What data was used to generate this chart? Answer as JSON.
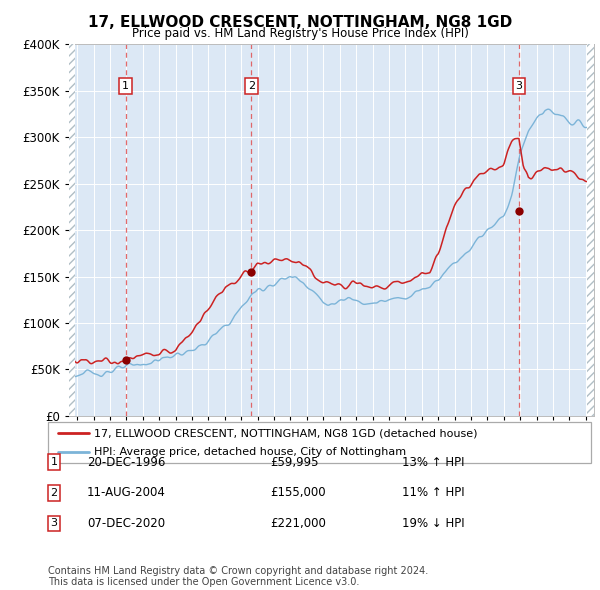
{
  "title": "17, ELLWOOD CRESCENT, NOTTINGHAM, NG8 1GD",
  "subtitle": "Price paid vs. HM Land Registry's House Price Index (HPI)",
  "sale_info": [
    {
      "label": "1",
      "date": "20-DEC-1996",
      "price": "£59,995",
      "hpi": "13% ↑ HPI"
    },
    {
      "label": "2",
      "date": "11-AUG-2004",
      "price": "£155,000",
      "hpi": "11% ↑ HPI"
    },
    {
      "label": "3",
      "date": "07-DEC-2020",
      "price": "£221,000",
      "hpi": "19% ↓ HPI"
    }
  ],
  "legend_line1": "17, ELLWOOD CRESCENT, NOTTINGHAM, NG8 1GD (detached house)",
  "legend_line2": "HPI: Average price, detached house, City of Nottingham",
  "footer1": "Contains HM Land Registry data © Crown copyright and database right 2024.",
  "footer2": "This data is licensed under the Open Government Licence v3.0.",
  "hpi_color": "#7cb4d8",
  "price_color": "#cc2222",
  "sale_marker_color": "#8b0000",
  "vline_color": "#e05050",
  "plot_bg": "#dce8f5",
  "ylim": [
    0,
    400000
  ],
  "yticks": [
    0,
    50000,
    100000,
    150000,
    200000,
    250000,
    300000,
    350000,
    400000
  ],
  "sale_year_vals": [
    1996.96,
    2004.61,
    2020.92
  ],
  "sale_prices": [
    59995,
    155000,
    221000
  ],
  "hpi_anchors_x": [
    1993.5,
    1994.0,
    1994.5,
    1995.5,
    1996.5,
    1997.5,
    1998.5,
    1999.5,
    2000.5,
    2001.5,
    2002.5,
    2003.5,
    2004.5,
    2005.0,
    2006.0,
    2007.0,
    2007.5,
    2008.0,
    2008.5,
    2009.0,
    2009.5,
    2010.0,
    2010.5,
    2011.0,
    2011.5,
    2012.0,
    2012.5,
    2013.0,
    2013.5,
    2014.0,
    2014.5,
    2015.0,
    2015.5,
    2016.0,
    2016.5,
    2017.0,
    2017.5,
    2018.0,
    2018.5,
    2019.0,
    2019.5,
    2020.0,
    2020.5,
    2020.83,
    2021.0,
    2021.5,
    2022.0,
    2022.5,
    2023.0,
    2023.5,
    2024.0,
    2024.5,
    2025.0,
    2025.4
  ],
  "hpi_anchors_y": [
    43000,
    44000,
    45000,
    47000,
    50000,
    54000,
    58000,
    63000,
    68000,
    74000,
    88000,
    105000,
    128000,
    135000,
    143000,
    150000,
    148000,
    142000,
    132000,
    122000,
    120000,
    122000,
    126000,
    126000,
    124000,
    122000,
    122000,
    124000,
    126000,
    128000,
    132000,
    136000,
    140000,
    148000,
    158000,
    165000,
    172000,
    182000,
    192000,
    200000,
    208000,
    215000,
    240000,
    268000,
    282000,
    305000,
    320000,
    330000,
    326000,
    320000,
    318000,
    315000,
    312000,
    310000
  ],
  "price_anchors_x": [
    1993.5,
    1994.0,
    1994.5,
    1995.0,
    1996.0,
    1996.96,
    1997.5,
    1998.0,
    1999.0,
    2000.0,
    2001.0,
    2002.0,
    2003.0,
    2004.0,
    2004.61,
    2005.0,
    2005.5,
    2006.0,
    2006.5,
    2007.0,
    2007.5,
    2008.0,
    2008.5,
    2009.0,
    2009.5,
    2010.0,
    2010.5,
    2011.0,
    2011.5,
    2012.0,
    2012.5,
    2013.0,
    2013.5,
    2014.0,
    2014.5,
    2015.0,
    2015.5,
    2016.0,
    2016.5,
    2017.0,
    2017.5,
    2018.0,
    2018.5,
    2019.0,
    2019.5,
    2020.0,
    2020.5,
    2020.92,
    2021.2,
    2021.5,
    2022.0,
    2022.5,
    2023.0,
    2023.5,
    2024.0,
    2024.5,
    2025.0,
    2025.4
  ],
  "price_anchors_y": [
    57000,
    59000,
    60000,
    59000,
    58000,
    59995,
    62000,
    64000,
    66000,
    70000,
    90000,
    118000,
    138000,
    150000,
    155000,
    162000,
    165000,
    168000,
    165000,
    168000,
    165000,
    158000,
    150000,
    143000,
    140000,
    143000,
    146000,
    145000,
    143000,
    140000,
    140000,
    140000,
    143000,
    146000,
    148000,
    152000,
    155000,
    175000,
    205000,
    225000,
    240000,
    252000,
    258000,
    262000,
    268000,
    272000,
    295000,
    300000,
    270000,
    258000,
    262000,
    268000,
    268000,
    265000,
    262000,
    260000,
    255000,
    250000
  ]
}
